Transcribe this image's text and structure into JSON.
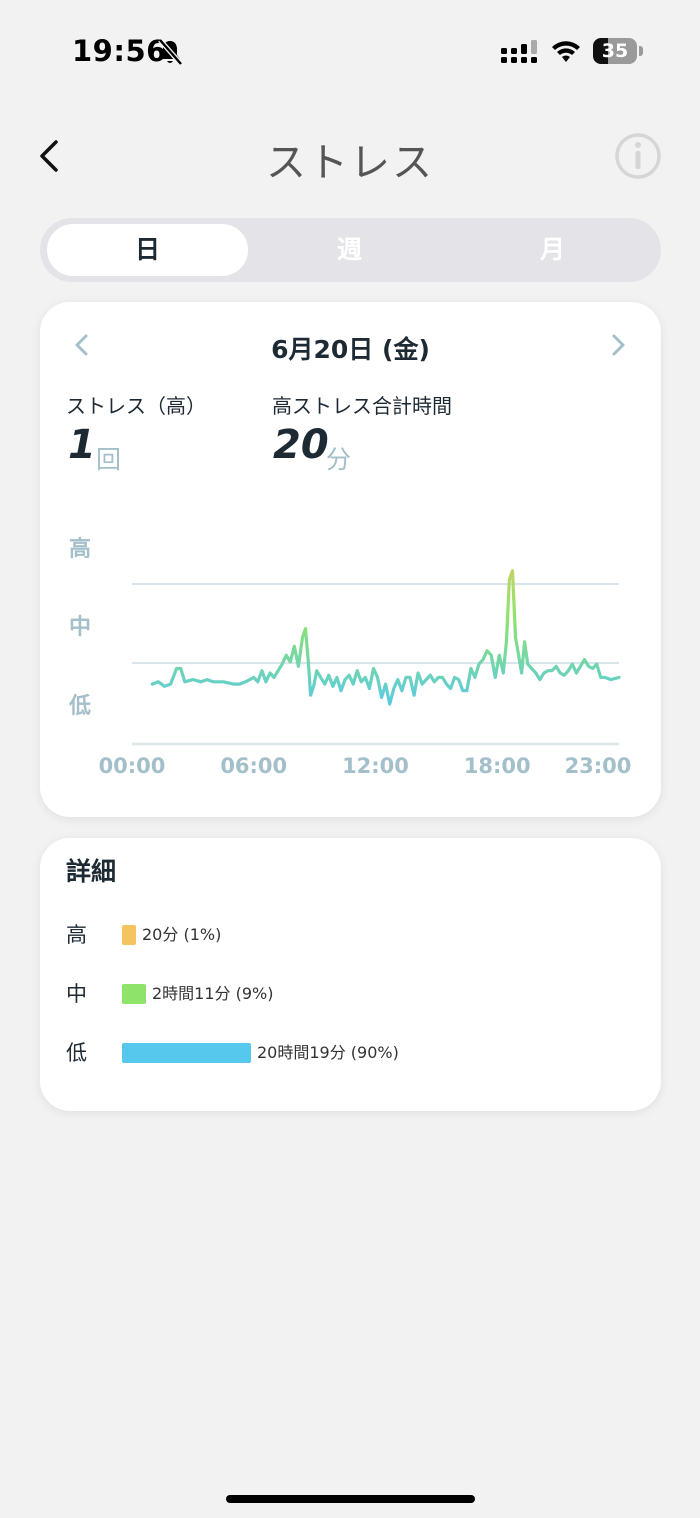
{
  "status_bar": {
    "time": "19:56",
    "battery": "35",
    "battery_level": 0.35
  },
  "header": {
    "title": "ストレス"
  },
  "tabs": [
    {
      "label": "日",
      "active": true
    },
    {
      "label": "週",
      "active": false
    },
    {
      "label": "月",
      "active": false
    }
  ],
  "day_card": {
    "date": "6月20日 (金)",
    "stats": [
      {
        "label": "ストレス（高）",
        "value": "1",
        "unit": "回"
      },
      {
        "label": "高ストレス合計時間",
        "value": "20",
        "unit": "分"
      }
    ]
  },
  "chart_data": {
    "type": "line",
    "title": "",
    "xlabel": "",
    "ylabel": "",
    "y_levels": [
      "高",
      "中",
      "低"
    ],
    "x_ticks": [
      "00:00",
      "06:00",
      "12:00",
      "18:00",
      "23:00"
    ],
    "xlim": [
      0,
      24
    ],
    "ylim": [
      0,
      100
    ],
    "grid": true,
    "colors": {
      "high": "#f5c460",
      "mid": "#8ee36b",
      "low": "#56c8ee"
    },
    "series": [
      {
        "x": [
          1.0,
          1.3,
          1.6,
          1.9,
          2.2,
          2.4,
          2.6,
          3.0,
          3.4,
          3.7,
          4.0,
          4.5,
          5.0,
          5.3,
          5.6,
          6.0,
          6.2,
          6.4,
          6.6,
          6.8,
          7.0,
          7.2,
          7.4,
          7.6,
          7.8,
          8.0,
          8.2,
          8.4,
          8.55,
          8.7,
          8.8,
          8.95,
          9.1,
          9.3,
          9.5,
          9.7,
          9.9,
          10.1,
          10.3,
          10.5,
          10.7,
          10.9,
          11.1,
          11.3,
          11.5,
          11.7,
          11.9,
          12.1,
          12.3,
          12.5,
          12.7,
          12.9,
          13.1,
          13.3,
          13.5,
          13.7,
          13.9,
          14.1,
          14.3,
          14.5,
          14.7,
          14.9,
          15.1,
          15.3,
          15.5,
          15.7,
          15.9,
          16.1,
          16.3,
          16.5,
          16.7,
          16.9,
          17.1,
          17.3,
          17.5,
          17.7,
          17.9,
          18.1,
          18.3,
          18.45,
          18.6,
          18.75,
          18.9,
          19.05,
          19.2,
          19.35,
          19.5,
          19.7,
          19.9,
          20.1,
          20.3,
          20.5,
          20.7,
          20.9,
          21.1,
          21.3,
          21.5,
          21.7,
          21.9,
          22.1,
          22.3,
          22.5,
          22.7,
          22.9,
          23.1,
          23.3,
          23.6,
          24.0
        ],
        "y": [
          27,
          28,
          26,
          27,
          34,
          34,
          28,
          29,
          28,
          29,
          28,
          28,
          27,
          27,
          28,
          30,
          28,
          33,
          28,
          32,
          30,
          33,
          36,
          40,
          37,
          44,
          35,
          48,
          52,
          36,
          22,
          26,
          33,
          30,
          27,
          31,
          26,
          30,
          24,
          29,
          31,
          27,
          33,
          28,
          30,
          25,
          34,
          30,
          21,
          27,
          18,
          25,
          29,
          24,
          30,
          30,
          22,
          32,
          27,
          29,
          31,
          28,
          30,
          30,
          27,
          25,
          30,
          29,
          24,
          24,
          34,
          30,
          36,
          38,
          42,
          40,
          30,
          40,
          32,
          46,
          74,
          78,
          48,
          40,
          32,
          46,
          36,
          34,
          32,
          29,
          32,
          33,
          33,
          35,
          32,
          31,
          33,
          36,
          32,
          35,
          38,
          35,
          34,
          36,
          30,
          30,
          29,
          30
        ]
      }
    ]
  },
  "details": {
    "title": "詳細",
    "rows": [
      {
        "label": "高",
        "text": "20分 (1%)",
        "fraction": 0.01,
        "color": "#f5c460"
      },
      {
        "label": "中",
        "text": "2時間11分 (9%)",
        "fraction": 0.09,
        "color": "#8ee36b"
      },
      {
        "label": "低",
        "text": "20時間19分 (90%)",
        "fraction": 0.9,
        "color": "#56c8ee"
      }
    ]
  }
}
